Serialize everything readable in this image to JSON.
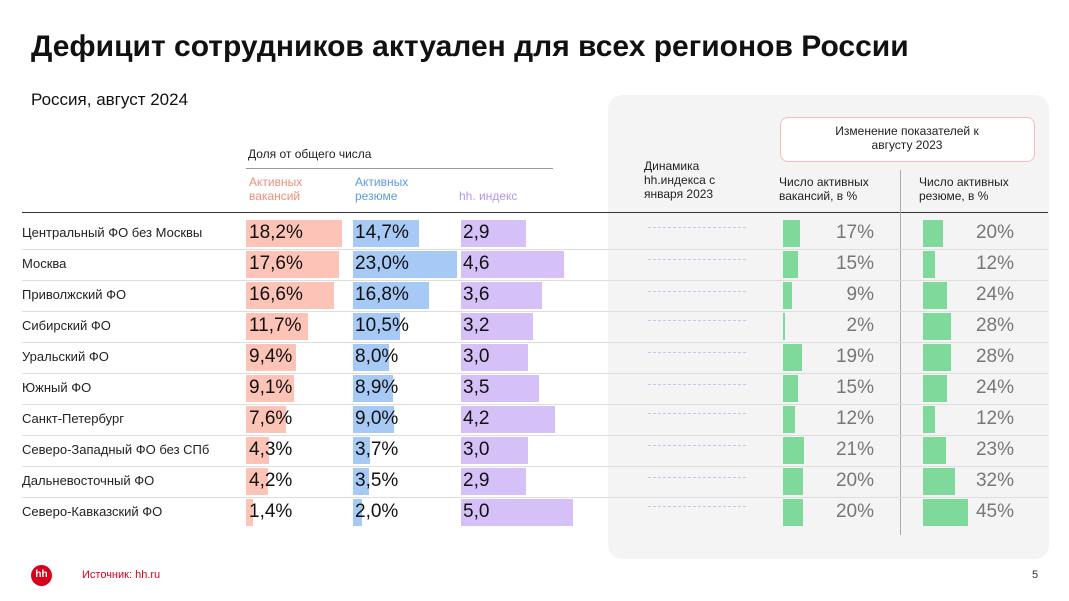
{
  "header": {
    "title": "Дефицит сотрудников актуален для всех регионов России",
    "subtitle": "Россия, август 2024"
  },
  "table": {
    "share_header": "Доля от общего числа",
    "columns": {
      "vacancies": "Активных вакансий",
      "resumes": "Активных резюме",
      "hh_index": "hh. индекс",
      "dynamics": "Динамика hh.индекса с января 2023",
      "change_box": "Изменение показателей к августу 2023",
      "vacancies_change": "Число активных вакансий, в %",
      "resumes_change": "Число активных резюме, в %"
    },
    "rows": [
      {
        "region": "Центральный ФО без Москвы",
        "vacancies": {
          "value": 18.2,
          "label": "18,2%"
        },
        "resumes": {
          "value": 14.7,
          "label": "14,7%"
        },
        "hh_index": {
          "value": 2.9,
          "label": "2,9"
        },
        "vacancies_change": {
          "value": 17,
          "label": "17%"
        },
        "resumes_change": {
          "value": 20,
          "label": "20%"
        }
      },
      {
        "region": "Москва",
        "vacancies": {
          "value": 17.6,
          "label": "17,6%"
        },
        "resumes": {
          "value": 23.0,
          "label": "23,0%"
        },
        "hh_index": {
          "value": 4.6,
          "label": "4,6"
        },
        "vacancies_change": {
          "value": 15,
          "label": "15%"
        },
        "resumes_change": {
          "value": 12,
          "label": "12%"
        }
      },
      {
        "region": "Приволжский ФО",
        "vacancies": {
          "value": 16.6,
          "label": "16,6%"
        },
        "resumes": {
          "value": 16.8,
          "label": "16,8%"
        },
        "hh_index": {
          "value": 3.6,
          "label": "3,6"
        },
        "vacancies_change": {
          "value": 9,
          "label": "9%"
        },
        "resumes_change": {
          "value": 24,
          "label": "24%"
        }
      },
      {
        "region": "Сибирский ФО",
        "vacancies": {
          "value": 11.7,
          "label": "11,7%"
        },
        "resumes": {
          "value": 10.5,
          "label": "10,5%"
        },
        "hh_index": {
          "value": 3.2,
          "label": "3,2"
        },
        "vacancies_change": {
          "value": 2,
          "label": "2%"
        },
        "resumes_change": {
          "value": 28,
          "label": "28%"
        }
      },
      {
        "region": "Уральский ФО",
        "vacancies": {
          "value": 9.4,
          "label": "9,4%"
        },
        "resumes": {
          "value": 8.0,
          "label": "8,0%"
        },
        "hh_index": {
          "value": 3.0,
          "label": "3,0"
        },
        "vacancies_change": {
          "value": 19,
          "label": "19%"
        },
        "resumes_change": {
          "value": 28,
          "label": "28%"
        }
      },
      {
        "region": "Южный ФО",
        "vacancies": {
          "value": 9.1,
          "label": "9,1%"
        },
        "resumes": {
          "value": 8.9,
          "label": "8,9%"
        },
        "hh_index": {
          "value": 3.5,
          "label": "3,5"
        },
        "vacancies_change": {
          "value": 15,
          "label": "15%"
        },
        "resumes_change": {
          "value": 24,
          "label": "24%"
        }
      },
      {
        "region": "Санкт-Петербург",
        "vacancies": {
          "value": 7.6,
          "label": "7,6%"
        },
        "resumes": {
          "value": 9.0,
          "label": "9,0%"
        },
        "hh_index": {
          "value": 4.2,
          "label": "4,2"
        },
        "vacancies_change": {
          "value": 12,
          "label": "12%"
        },
        "resumes_change": {
          "value": 12,
          "label": "12%"
        }
      },
      {
        "region": "Северо-Западный ФО без СПб",
        "vacancies": {
          "value": 4.3,
          "label": "4,3%"
        },
        "resumes": {
          "value": 3.7,
          "label": "3,7%"
        },
        "hh_index": {
          "value": 3.0,
          "label": "3,0"
        },
        "vacancies_change": {
          "value": 21,
          "label": "21%"
        },
        "resumes_change": {
          "value": 23,
          "label": "23%"
        }
      },
      {
        "region": "Дальневосточный ФО",
        "vacancies": {
          "value": 4.2,
          "label": "4,2%"
        },
        "resumes": {
          "value": 3.5,
          "label": "3,5%"
        },
        "hh_index": {
          "value": 2.9,
          "label": "2,9"
        },
        "vacancies_change": {
          "value": 20,
          "label": "20%"
        },
        "resumes_change": {
          "value": 32,
          "label": "32%"
        }
      },
      {
        "region": "Северо-Кавказский ФО",
        "vacancies": {
          "value": 1.4,
          "label": "1,4%"
        },
        "resumes": {
          "value": 2.0,
          "label": "2,0%"
        },
        "hh_index": {
          "value": 5.0,
          "label": "5,0"
        },
        "vacancies_change": {
          "value": 20,
          "label": "20%"
        },
        "resumes_change": {
          "value": 45,
          "label": "45%"
        }
      }
    ]
  },
  "footer": {
    "logo": "hh",
    "source": "Источник: hh.ru",
    "page": "5"
  }
}
